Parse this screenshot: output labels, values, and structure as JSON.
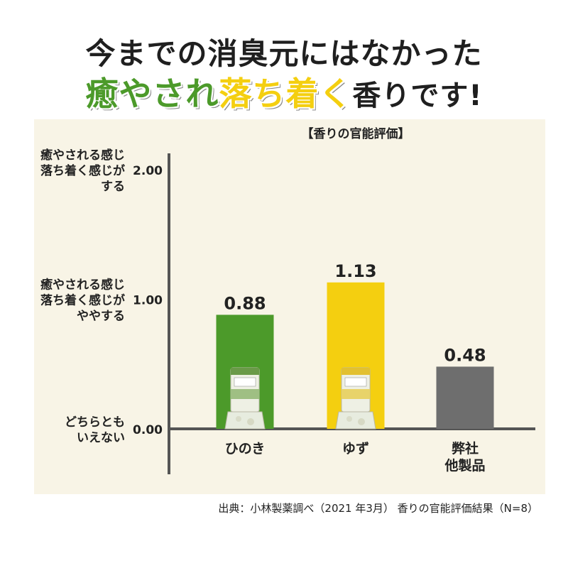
{
  "headline": {
    "line1": "今までの消臭元にはなかった",
    "line2_green": "癒やされ",
    "line2_yellow": "落ち着く",
    "line2_rest": "香りです!"
  },
  "colors": {
    "panel_bg": "#f8f4e6",
    "green": "#4c9a2a",
    "yellow": "#f4cf10",
    "gray": "#6e6e6e",
    "axis": "#555555"
  },
  "chart_data": {
    "type": "bar",
    "title": "【香りの官能評価】",
    "categories": [
      "ひのき",
      "ゆず",
      "弊社\n他製品"
    ],
    "values": [
      0.88,
      1.13,
      0.48
    ],
    "value_labels": [
      "0.88",
      "1.13",
      "0.48"
    ],
    "bar_colors": [
      "#4c9a2a",
      "#f4cf10",
      "#6e6e6e"
    ],
    "bar_pictures": [
      "product-bottle-hinoki",
      "product-bottle-yuzu",
      ""
    ],
    "ylim": [
      0,
      2.0
    ],
    "yticks": [
      {
        "value": 0,
        "label": "0.00",
        "desc": [
          "どちらとも",
          "いえない"
        ]
      },
      {
        "value": 1,
        "label": "1.00",
        "desc": [
          "癒やされる感じ",
          "落ち着く感じが",
          "ややする"
        ]
      },
      {
        "value": 2,
        "label": "2.00",
        "desc": [
          "癒やされる感じ",
          "落ち着く感じが",
          "する"
        ]
      }
    ],
    "grid": false
  },
  "footer": "出典：小林製薬調べ（2021 年3月） 香りの官能評価結果（N=8）"
}
